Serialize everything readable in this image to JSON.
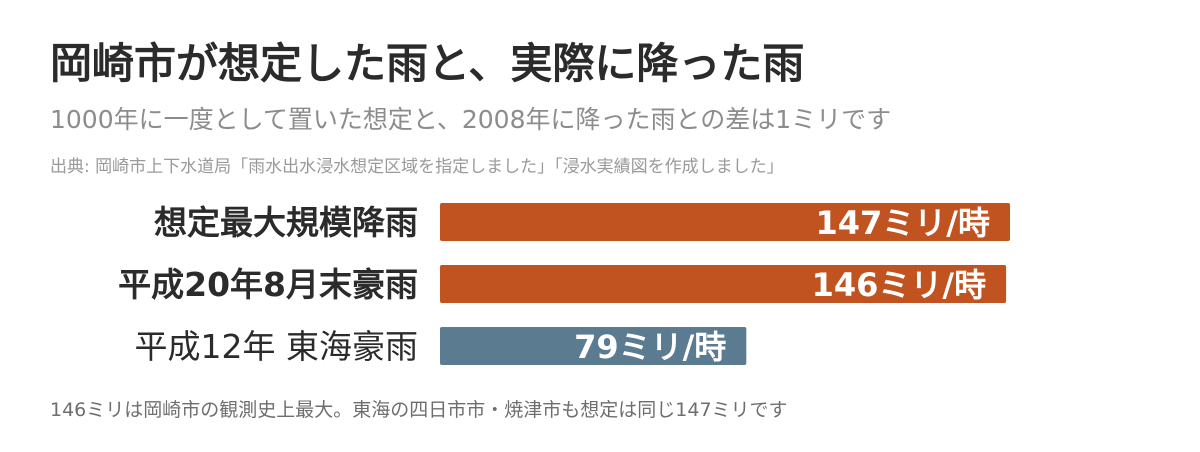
{
  "title": "岡崎市が想定した雨と、実際に降った雨",
  "subtitle": "1000年に一度として置いた想定と、2008年に降った雨との差は1ミリです",
  "source": "出典: 岡崎市上下水道局「雨水出水浸水想定区域を指定しました」「浸水実績図を作成しました」",
  "footnote": "146ミリは岡崎市の観測史上最大。東海の四日市市・焼津市も想定は同じ147ミリです",
  "colors": {
    "highlight": "#c0531f",
    "other": "#5b7b91"
  },
  "chart_data": {
    "type": "bar",
    "orientation": "horizontal",
    "categories": [
      "想定最大規模降雨",
      "平成20年8月末豪雨",
      "平成12年 東海豪雨"
    ],
    "values": [
      147,
      146,
      79
    ],
    "value_labels": [
      "147ミリ/時",
      "146ミリ/時",
      "79ミリ/時"
    ],
    "unit": "ミリ/時",
    "highlighted": [
      true,
      true,
      false
    ],
    "xlim": [
      0,
      147
    ],
    "grid": false,
    "legend": "none"
  }
}
